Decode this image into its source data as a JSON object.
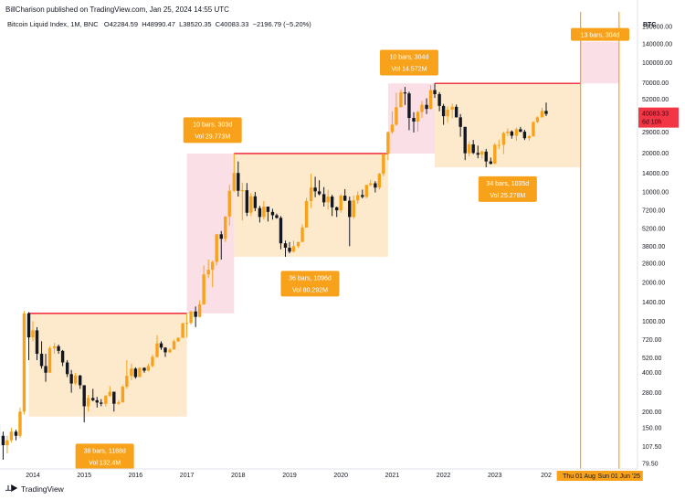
{
  "header": {
    "byline": "BillCharison published on TradingView.com, Jan 25, 2024 14:55 UTC",
    "symbol": "Bitcoin Liquid Index, 1M, BNC",
    "open": "O42284.59",
    "high": "H48990.47",
    "low": "L38520.35",
    "close": "C40083.33",
    "change": "−2196.79 (−5.20%)"
  },
  "footer": {
    "brand": "TradingView"
  },
  "colors": {
    "up": "#f7a21a",
    "down": "#131722",
    "zone": "#fde8c8",
    "pink": "#fbdbe3",
    "resistance": "#f23645",
    "label_bg": "#f7a21a",
    "price_tag": "#f23645",
    "vline": "#f7a21a"
  },
  "chart_data": {
    "type": "candlestick",
    "currency": "BTC",
    "y_scale": "log",
    "y_ticks": [
      "190000.00",
      "140000.00",
      "100000.00",
      "70000.00",
      "52000.00",
      "40083.33",
      "29000.00",
      "20000.00",
      "14000.00",
      "10000.00",
      "7200.00",
      "5200.00",
      "3800.00",
      "2800.00",
      "2000.00",
      "1400.00",
      "1000.00",
      "720.00",
      "520.00",
      "400.00",
      "280.00",
      "200.00",
      "150.00",
      "107.50",
      "79.50"
    ],
    "x_ticks": [
      "2014",
      "2015",
      "2016",
      "2017",
      "2018",
      "2019",
      "2020",
      "2021",
      "2022",
      "2023",
      "202"
    ],
    "current_price": "40083.33",
    "countdown": "6d 10h",
    "time_markers": [
      "Thu 01 Aug '",
      "Sun 01 Jun '25"
    ],
    "candles": [
      [
        2013.0,
        80,
        120,
        75,
        110
      ],
      [
        2013.08,
        110,
        125,
        95,
        118
      ],
      [
        2013.17,
        118,
        230,
        110,
        220
      ],
      [
        2013.25,
        220,
        260,
        130,
        160
      ],
      [
        2013.33,
        160,
        180,
        100,
        130
      ],
      [
        2013.42,
        130,
        140,
        85,
        110
      ],
      [
        2013.5,
        110,
        130,
        95,
        120
      ],
      [
        2013.58,
        120,
        150,
        115,
        140
      ],
      [
        2013.67,
        140,
        145,
        120,
        130
      ],
      [
        2013.75,
        130,
        215,
        125,
        200
      ],
      [
        2013.83,
        200,
        1200,
        190,
        1150
      ],
      [
        2013.92,
        1150,
        1175,
        500,
        750
      ],
      [
        2014.0,
        750,
        1000,
        700,
        850
      ],
      [
        2014.08,
        850,
        900,
        500,
        560
      ],
      [
        2014.17,
        560,
        700,
        430,
        450
      ],
      [
        2014.25,
        450,
        560,
        340,
        400
      ],
      [
        2014.33,
        400,
        640,
        400,
        620
      ],
      [
        2014.42,
        620,
        680,
        560,
        640
      ],
      [
        2014.5,
        640,
        660,
        560,
        590
      ],
      [
        2014.58,
        590,
        600,
        450,
        480
      ],
      [
        2014.67,
        480,
        500,
        370,
        390
      ],
      [
        2014.75,
        390,
        420,
        280,
        330
      ],
      [
        2014.83,
        330,
        400,
        320,
        380
      ],
      [
        2014.92,
        380,
        385,
        300,
        320
      ],
      [
        2015.0,
        320,
        320,
        165,
        220
      ],
      [
        2015.08,
        220,
        270,
        200,
        255
      ],
      [
        2015.17,
        255,
        300,
        240,
        245
      ],
      [
        2015.25,
        245,
        260,
        215,
        235
      ],
      [
        2015.33,
        235,
        250,
        220,
        230
      ],
      [
        2015.42,
        230,
        270,
        220,
        265
      ],
      [
        2015.5,
        265,
        315,
        260,
        285
      ],
      [
        2015.58,
        285,
        285,
        200,
        230
      ],
      [
        2015.67,
        230,
        245,
        225,
        236
      ],
      [
        2015.75,
        236,
        320,
        235,
        312
      ],
      [
        2015.83,
        312,
        500,
        300,
        378
      ],
      [
        2015.92,
        378,
        470,
        350,
        430
      ],
      [
        2016.0,
        430,
        440,
        360,
        370
      ],
      [
        2016.08,
        370,
        440,
        370,
        436
      ],
      [
        2016.17,
        436,
        440,
        400,
        415
      ],
      [
        2016.25,
        415,
        470,
        410,
        450
      ],
      [
        2016.33,
        450,
        550,
        440,
        530
      ],
      [
        2016.42,
        530,
        780,
        520,
        675
      ],
      [
        2016.5,
        675,
        700,
        600,
        625
      ],
      [
        2016.58,
        625,
        630,
        530,
        575
      ],
      [
        2016.67,
        575,
        620,
        570,
        605
      ],
      [
        2016.75,
        605,
        720,
        605,
        700
      ],
      [
        2016.83,
        700,
        750,
        690,
        745
      ],
      [
        2016.92,
        745,
        970,
        740,
        965
      ],
      [
        2017.0,
        965,
        1150,
        750,
        970
      ],
      [
        2017.08,
        970,
        1200,
        940,
        1190
      ],
      [
        2017.17,
        1190,
        1300,
        900,
        1080
      ],
      [
        2017.25,
        1080,
        1450,
        1070,
        1350
      ],
      [
        2017.33,
        1350,
        2700,
        1340,
        2300
      ],
      [
        2017.42,
        2300,
        3000,
        2150,
        2500
      ],
      [
        2017.5,
        2500,
        2950,
        1830,
        2870
      ],
      [
        2017.58,
        2870,
        4750,
        2700,
        4700
      ],
      [
        2017.67,
        4700,
        4980,
        3000,
        4340
      ],
      [
        2017.75,
        4340,
        6470,
        4100,
        6450
      ],
      [
        2017.83,
        6450,
        11400,
        5500,
        10200
      ],
      [
        2017.92,
        10200,
        19800,
        10000,
        14000
      ],
      [
        2018.0,
        14000,
        17200,
        9200,
        10200
      ],
      [
        2018.08,
        10200,
        11800,
        6000,
        10300
      ],
      [
        2018.17,
        10300,
        11700,
        6500,
        6900
      ],
      [
        2018.25,
        6900,
        9800,
        6500,
        9250
      ],
      [
        2018.33,
        9250,
        10000,
        7100,
        7500
      ],
      [
        2018.42,
        7500,
        7800,
        5800,
        6400
      ],
      [
        2018.5,
        6400,
        8500,
        6100,
        7700
      ],
      [
        2018.58,
        7700,
        7700,
        5900,
        7000
      ],
      [
        2018.67,
        7000,
        7400,
        6100,
        6600
      ],
      [
        2018.75,
        6600,
        6800,
        6200,
        6300
      ],
      [
        2018.83,
        6300,
        6500,
        3600,
        4000
      ],
      [
        2018.92,
        4000,
        4200,
        3150,
        3700
      ],
      [
        2019.0,
        3700,
        4100,
        3350,
        3450
      ],
      [
        2019.08,
        3450,
        4200,
        3400,
        3800
      ],
      [
        2019.17,
        3800,
        4100,
        3700,
        4100
      ],
      [
        2019.25,
        4100,
        5600,
        4100,
        5300
      ],
      [
        2019.33,
        5300,
        9000,
        5300,
        8500
      ],
      [
        2019.42,
        8500,
        13800,
        7500,
        10800
      ],
      [
        2019.5,
        10800,
        13100,
        9100,
        10100
      ],
      [
        2019.58,
        10100,
        12300,
        9400,
        9600
      ],
      [
        2019.67,
        9600,
        10900,
        7700,
        8300
      ],
      [
        2019.75,
        8300,
        10400,
        7300,
        9200
      ],
      [
        2019.83,
        9200,
        9500,
        6500,
        7600
      ],
      [
        2019.92,
        7600,
        7700,
        6400,
        7200
      ],
      [
        2020.0,
        7200,
        9600,
        6900,
        9350
      ],
      [
        2020.08,
        9350,
        10500,
        8500,
        8550
      ],
      [
        2020.17,
        8550,
        9200,
        3800,
        6400
      ],
      [
        2020.25,
        6400,
        9400,
        6200,
        8600
      ],
      [
        2020.33,
        8600,
        10100,
        8100,
        9450
      ],
      [
        2020.42,
        9450,
        10400,
        8900,
        9150
      ],
      [
        2020.5,
        9150,
        11400,
        8900,
        11300
      ],
      [
        2020.58,
        11300,
        12400,
        11100,
        11650
      ],
      [
        2020.67,
        11650,
        12100,
        9900,
        10800
      ],
      [
        2020.75,
        10800,
        14000,
        10400,
        13800
      ],
      [
        2020.83,
        13800,
        19800,
        13200,
        19700
      ],
      [
        2020.92,
        19700,
        29300,
        17600,
        29000
      ],
      [
        2021.0,
        29000,
        42000,
        28100,
        33100
      ],
      [
        2021.08,
        33100,
        58300,
        32400,
        45200
      ],
      [
        2021.17,
        45200,
        61700,
        45000,
        58800
      ],
      [
        2021.25,
        58800,
        64800,
        47000,
        57700
      ],
      [
        2021.33,
        57700,
        59500,
        30000,
        37300
      ],
      [
        2021.42,
        37300,
        41300,
        28800,
        35000
      ],
      [
        2021.5,
        35000,
        42300,
        29300,
        41500
      ],
      [
        2021.58,
        41500,
        50500,
        37300,
        47100
      ],
      [
        2021.67,
        47100,
        52900,
        40000,
        43800
      ],
      [
        2021.75,
        43800,
        67000,
        43300,
        61300
      ],
      [
        2021.83,
        61300,
        69000,
        53300,
        57000
      ],
      [
        2021.92,
        57000,
        59100,
        42000,
        46200
      ],
      [
        2022.0,
        46200,
        47900,
        33000,
        38500
      ],
      [
        2022.08,
        38500,
        45800,
        34300,
        43200
      ],
      [
        2022.17,
        43200,
        48200,
        37200,
        45500
      ],
      [
        2022.25,
        45500,
        47400,
        37600,
        37700
      ],
      [
        2022.33,
        37700,
        40000,
        26700,
        31800
      ],
      [
        2022.42,
        31800,
        31900,
        17600,
        19900
      ],
      [
        2022.5,
        19900,
        24600,
        18800,
        23300
      ],
      [
        2022.58,
        23300,
        25200,
        19600,
        20000
      ],
      [
        2022.67,
        20000,
        22800,
        18200,
        19400
      ],
      [
        2022.75,
        19400,
        20900,
        18100,
        20500
      ],
      [
        2022.83,
        20500,
        21500,
        15500,
        17200
      ],
      [
        2022.92,
        17200,
        18400,
        16300,
        16500
      ],
      [
        2023.0,
        16500,
        23900,
        16500,
        23100
      ],
      [
        2023.08,
        23100,
        25300,
        21400,
        23100
      ],
      [
        2023.17,
        23100,
        29200,
        19600,
        28500
      ],
      [
        2023.25,
        28500,
        31000,
        26900,
        29300
      ],
      [
        2023.33,
        29300,
        29900,
        25800,
        27200
      ],
      [
        2023.42,
        27200,
        31400,
        24800,
        30500
      ],
      [
        2023.5,
        30500,
        31800,
        28900,
        29200
      ],
      [
        2023.58,
        29200,
        30200,
        25200,
        26000
      ],
      [
        2023.67,
        26000,
        27500,
        24900,
        27000
      ],
      [
        2023.75,
        27000,
        35200,
        26600,
        34700
      ],
      [
        2023.83,
        34700,
        38400,
        34100,
        37700
      ],
      [
        2023.92,
        37700,
        44700,
        37600,
        42300
      ],
      [
        2024.0,
        42284.59,
        48990.47,
        38520.35,
        40083.33
      ]
    ],
    "zones": [
      {
        "kind": "range",
        "x0": 2013.92,
        "x1": 2017.0,
        "lo": 183,
        "hi": 1150
      },
      {
        "kind": "pink",
        "x0": 2017.0,
        "x1": 2017.92,
        "lo": 1150,
        "hi": 19800
      },
      {
        "kind": "range",
        "x0": 2017.92,
        "x1": 2020.92,
        "lo": 3150,
        "hi": 19800
      },
      {
        "kind": "pink",
        "x0": 2020.92,
        "x1": 2021.83,
        "lo": 19800,
        "hi": 69000
      },
      {
        "kind": "range",
        "x0": 2021.83,
        "x1": 2024.67,
        "lo": 15500,
        "hi": 69000
      },
      {
        "kind": "pink",
        "x0": 2024.67,
        "x1": 2025.42,
        "lo": 69000,
        "hi": 145000
      }
    ],
    "resistance_lines": [
      {
        "x0": 2013.92,
        "x1": 2017.0,
        "y": 1150
      },
      {
        "x0": 2017.92,
        "x1": 2020.92,
        "y": 19800
      },
      {
        "x0": 2021.83,
        "x1": 2024.67,
        "y": 69000
      }
    ],
    "annotations": [
      {
        "line1": "38 bars, 1188d",
        "line2": "Vol 132.4M",
        "x": 2015.4,
        "y": 90
      },
      {
        "line1": "10 bars, 303d",
        "line2": "Vol 29.773M",
        "x": 2017.5,
        "y": 30000
      },
      {
        "line1": "36 bars, 1096d",
        "line2": "Vol 80.292M",
        "x": 2019.4,
        "y": 1950
      },
      {
        "line1": "10 bars, 304d",
        "line2": "Vol 14.572M",
        "x": 2021.33,
        "y": 100000
      },
      {
        "line1": "34 bars, 1035d",
        "line2": "Vol 25.278M",
        "x": 2023.25,
        "y": 10500
      },
      {
        "line1": "13 bars, 304d",
        "line2": "",
        "x": 2025.05,
        "y": 165000
      }
    ],
    "vlines": [
      2024.67,
      2025.42
    ]
  }
}
